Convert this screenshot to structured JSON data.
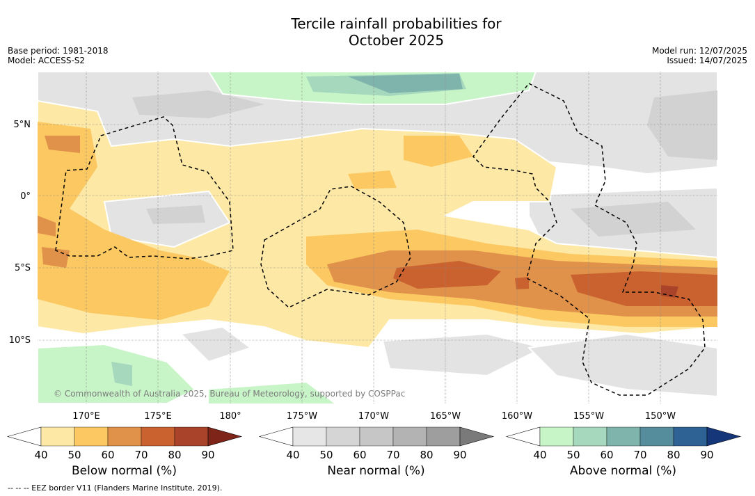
{
  "title_line1": "Tercile rainfall probabilities for",
  "title_line2": "October 2025",
  "base_period": "Base period: 1981-2018",
  "model": "Model: ACCESS-S2",
  "model_run": "Model run: 12/07/2025",
  "issued": "Issued: 14/07/2025",
  "copyright": "© Commonwealth of Australia 2025, Bureau of Meteorology, supported by COSPPac",
  "lat_labels": [
    "5°N",
    "0°",
    "5°S",
    "10°S"
  ],
  "lon_labels": [
    "170°E",
    "175°E",
    "180°",
    "175°W",
    "170°W",
    "165°W",
    "160°W",
    "155°W",
    "150°W"
  ],
  "colorbars": [
    {
      "label": "Below normal (%)",
      "ticks": [
        "40",
        "50",
        "60",
        "70",
        "80",
        "90"
      ],
      "colors": [
        "#ffffff",
        "#fde9a5",
        "#fcc862",
        "#e0924a",
        "#c9622f",
        "#a9442a",
        "#7e2419"
      ]
    },
    {
      "label": "Near normal (%)",
      "ticks": [
        "40",
        "50",
        "60",
        "70",
        "80",
        "90"
      ],
      "colors": [
        "#ffffff",
        "#e6e6e6",
        "#d5d5d5",
        "#c6c6c6",
        "#b3b3b3",
        "#9e9e9e",
        "#7a7a7a"
      ]
    },
    {
      "label": "Above normal (%)",
      "ticks": [
        "40",
        "50",
        "60",
        "70",
        "80",
        "90"
      ],
      "colors": [
        "#ffffff",
        "#c8f5c8",
        "#a6d8bd",
        "#7fb4ad",
        "#558d9c",
        "#2e6294",
        "#16367a"
      ]
    }
  ],
  "eez_note": "--  --  -- EEZ border V11 (Flanders Marine Institute, 2019)."
}
